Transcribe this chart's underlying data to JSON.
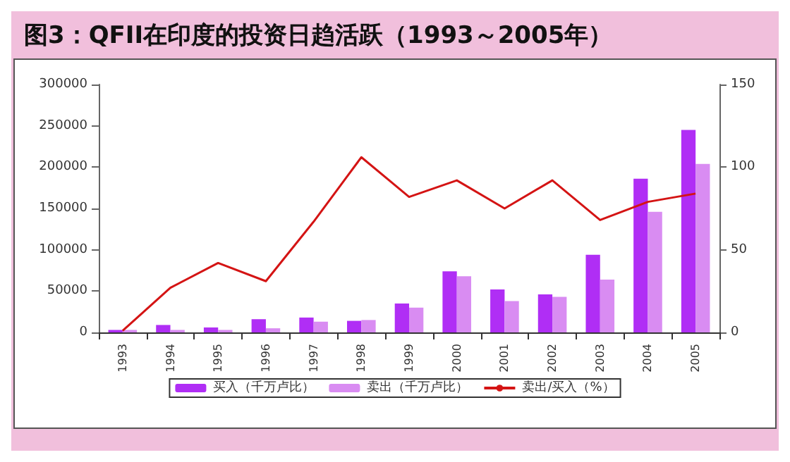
{
  "chart_data": {
    "type": "bar",
    "title": "图3：QFII在印度的投资日趋活跃（1993～2005年）",
    "categories": [
      "1993",
      "1994",
      "1995",
      "1996",
      "1997",
      "1998",
      "1999",
      "2000",
      "2001",
      "2002",
      "2003",
      "2004",
      "2005"
    ],
    "series": [
      {
        "name": "买入（千万卢比）",
        "color": "#b02ef5",
        "values": [
          3000,
          9000,
          6000,
          16000,
          18000,
          14000,
          35000,
          74000,
          52000,
          46000,
          94000,
          186000,
          245000
        ]
      },
      {
        "name": "卖出（千万卢比）",
        "color": "#d98cf2",
        "values": [
          3000,
          3000,
          3000,
          5000,
          13000,
          15000,
          30000,
          68000,
          38000,
          43000,
          64000,
          146000,
          204000
        ]
      },
      {
        "name": "卖出/买入（%）",
        "type": "line",
        "axis": "y2",
        "color": "#d41414",
        "values": [
          1,
          27,
          42,
          31,
          67,
          106,
          82,
          92,
          75,
          92,
          68,
          79,
          84
        ]
      }
    ],
    "ylim": [
      0,
      300000
    ],
    "yticks": [
      0,
      50000,
      100000,
      150000,
      200000,
      250000,
      300000
    ],
    "y2lim": [
      0,
      150
    ],
    "y2ticks": [
      0,
      50,
      100,
      150
    ],
    "grid": false,
    "legend": "bottom",
    "marker": "none"
  }
}
